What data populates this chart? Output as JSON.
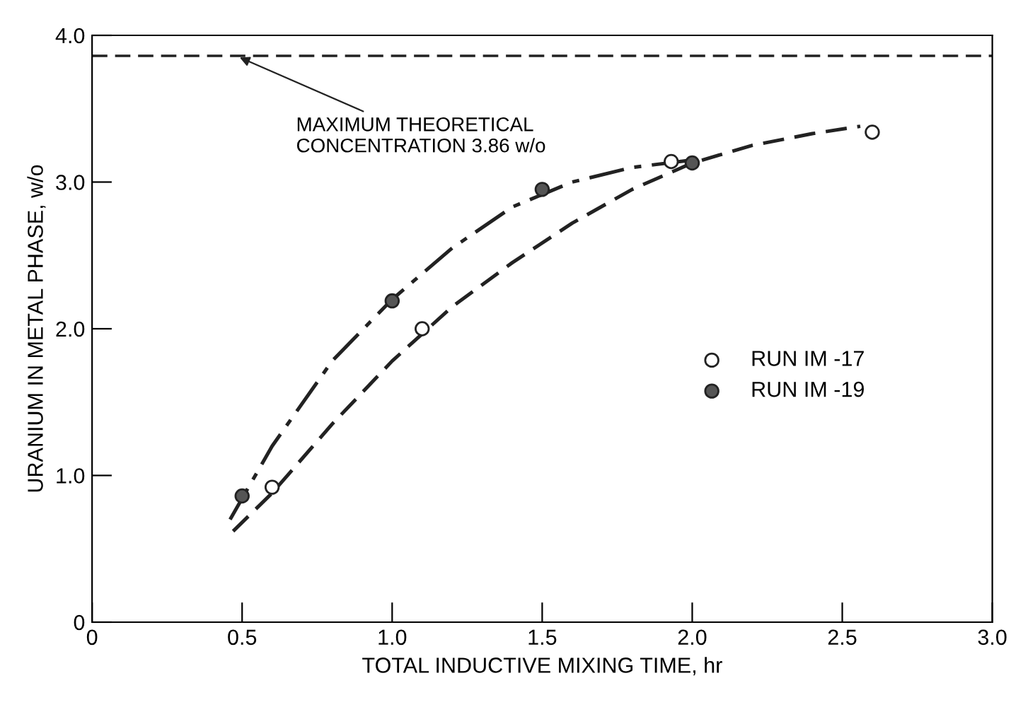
{
  "chart_data": {
    "type": "scatter",
    "xlabel": "TOTAL INDUCTIVE MIXING TIME, hr",
    "ylabel": "URANIUM IN METAL PHASE, w/o",
    "xlim": [
      0,
      3.0
    ],
    "ylim": [
      0,
      4.0
    ],
    "xticks": [
      {
        "value": 0,
        "label": "0"
      },
      {
        "value": 0.5,
        "label": "0.5"
      },
      {
        "value": 1.0,
        "label": "1.0"
      },
      {
        "value": 1.5,
        "label": "1.5"
      },
      {
        "value": 2.0,
        "label": "2.0"
      },
      {
        "value": 2.5,
        "label": "2.5"
      },
      {
        "value": 3.0,
        "label": "3.0"
      }
    ],
    "yticks": [
      {
        "value": 0,
        "label": "0"
      },
      {
        "value": 1.0,
        "label": "1.0"
      },
      {
        "value": 2.0,
        "label": "2.0"
      },
      {
        "value": 3.0,
        "label": "3.0"
      },
      {
        "value": 4.0,
        "label": "4.0"
      }
    ],
    "grid": false,
    "legend": "right",
    "series": [
      {
        "name": "RUN IM -17",
        "marker": "circle",
        "color": "#ffffff",
        "x": [
          0.6,
          1.1,
          1.93,
          2.6
        ],
        "values": [
          0.92,
          2.0,
          3.14,
          3.34
        ]
      },
      {
        "name": "RUN IM -19",
        "marker": "circle",
        "color": "#555555",
        "x": [
          0.5,
          1.0,
          1.5,
          2.0
        ],
        "values": [
          0.86,
          2.19,
          2.95,
          3.13
        ]
      },
      {
        "type": "line",
        "color": "#222222",
        "line_style": "dashed",
        "x": [
          0.47,
          0.6,
          0.8,
          1.0,
          1.2,
          1.4,
          1.6,
          1.8,
          2.0,
          2.2,
          2.4,
          2.56
        ],
        "values": [
          0.62,
          0.88,
          1.35,
          1.78,
          2.15,
          2.45,
          2.72,
          2.95,
          3.13,
          3.25,
          3.33,
          3.38
        ]
      },
      {
        "type": "line",
        "color": "#222222",
        "line_style": "dashdot",
        "x": [
          0.46,
          0.6,
          0.8,
          1.0,
          1.2,
          1.4,
          1.6,
          1.8,
          2.0
        ],
        "values": [
          0.7,
          1.2,
          1.78,
          2.2,
          2.55,
          2.83,
          3.0,
          3.1,
          3.15
        ]
      }
    ],
    "ref_lines": [
      {
        "axis": "y",
        "value": 3.86,
        "color": "#222222",
        "line_style": "dashed"
      }
    ],
    "annotations": [
      {
        "text": "MAXIMUM THEORETICAL\nCONCENTRATION 3.86 w/o",
        "x": 0.48,
        "y": 3.86
      }
    ]
  }
}
